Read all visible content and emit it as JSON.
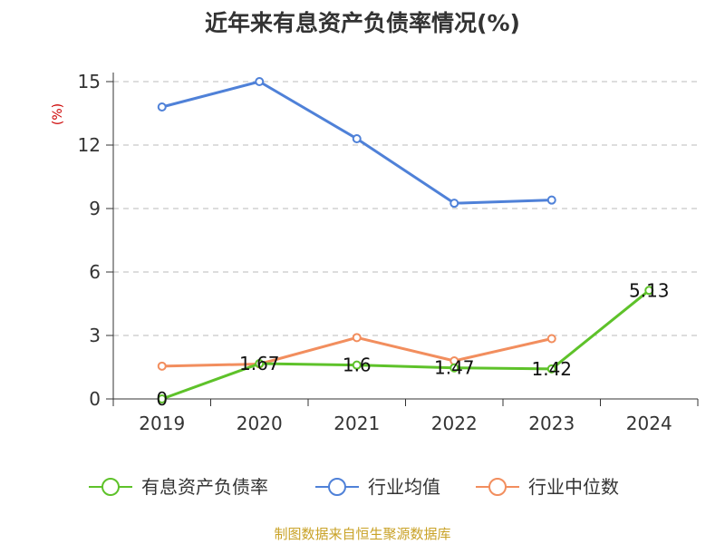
{
  "chart_data": {
    "type": "line",
    "title": "近年来有息资产负债率情况(%)",
    "ylabel": "(%)",
    "xlabel": "",
    "categories": [
      "2019",
      "2020",
      "2021",
      "2022",
      "2023",
      "2024"
    ],
    "ylim": [
      0,
      15
    ],
    "yticks": [
      0,
      3,
      6,
      9,
      12,
      15
    ],
    "grid": true,
    "legend_position": "bottom",
    "series": [
      {
        "name": "有息资产负债率",
        "color": "#5ec22a",
        "values": [
          0,
          1.67,
          1.6,
          1.47,
          1.42,
          5.13
        ],
        "labels": [
          "0",
          "1.67",
          "1.6",
          "1.47",
          "1.42",
          "5.13"
        ],
        "show_labels": true
      },
      {
        "name": "行业均值",
        "color": "#4f81d8",
        "values": [
          13.8,
          15.0,
          12.3,
          9.25,
          9.4,
          null
        ],
        "show_labels": false
      },
      {
        "name": "行业中位数",
        "color": "#f28e5e",
        "values": [
          1.55,
          1.65,
          2.9,
          1.8,
          2.85,
          null
        ],
        "show_labels": false
      }
    ]
  },
  "colors": {
    "ylabel": "#cc0000",
    "source": "#c9a227",
    "grid": "#bbbbbb",
    "axis": "#333333"
  },
  "source_text": "制图数据来自恒生聚源数据库"
}
